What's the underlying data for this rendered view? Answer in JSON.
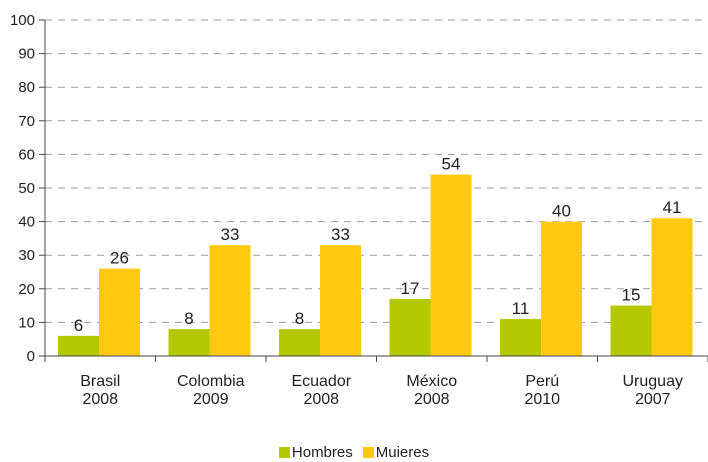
{
  "chart_data": {
    "type": "bar",
    "categories": [
      [
        "Brasil",
        "2008"
      ],
      [
        "Colombia",
        "2009"
      ],
      [
        "Ecuador",
        "2008"
      ],
      [
        "México",
        "2008"
      ],
      [
        "Perú",
        "2010"
      ],
      [
        "Uruguay",
        "2007"
      ]
    ],
    "series": [
      {
        "name": "Hombres",
        "values": [
          6,
          8,
          8,
          17,
          11,
          15
        ],
        "color": "#b4c800"
      },
      {
        "name": "Mujeres",
        "values": [
          26,
          33,
          33,
          54,
          40,
          41
        ],
        "color": "#ffc910"
      }
    ],
    "yticks": [
      0,
      10,
      20,
      30,
      40,
      50,
      60,
      70,
      80,
      90,
      100
    ],
    "ylim": [
      0,
      100
    ],
    "grid": "horizontal dashed",
    "legend": "bottom-center",
    "legend_labels": [
      "Hombres",
      "Muieres"
    ]
  }
}
